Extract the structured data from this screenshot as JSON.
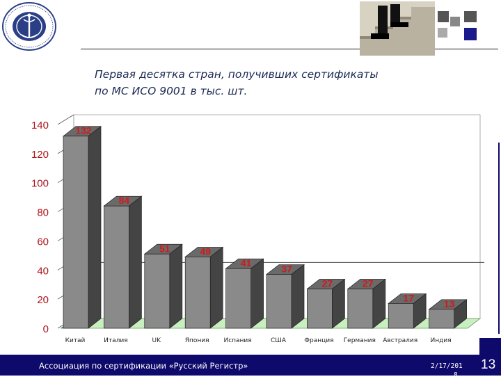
{
  "slide": {
    "title_line1": "Первая десятка стран,  получивших сертификаты",
    "title_line2": "по МС ИСО 9001 в тыс. шт.",
    "footer_org": "Ассоциация по сертификации «Русский Регистр»",
    "footer_date": "2/17/201",
    "footer_date_frag": "8",
    "page_number": "13"
  },
  "colors": {
    "footer_bg": "#0d0a6b",
    "bar_front": "#8a8a8a",
    "bar_side": "#444444",
    "bar_top": "#6a6a6a",
    "data_label": "#d11a1a",
    "axis_label": "#b0151d",
    "floor": "#c9efc0",
    "title_text": "#1c2a55"
  },
  "chart_data": {
    "type": "bar",
    "categories": [
      "Китай",
      "Италия",
      "UK",
      "Япония",
      "Испания",
      "США",
      "Франция",
      "Германия",
      "Австралия",
      "Индия"
    ],
    "values": [
      132,
      84,
      51,
      49,
      41,
      37,
      27,
      27,
      17,
      13
    ],
    "ylim": [
      0,
      140
    ],
    "yticks": [
      "0",
      "20",
      "40",
      "60",
      "80",
      "100",
      "120",
      "140"
    ],
    "three_d": true,
    "grid": false
  }
}
